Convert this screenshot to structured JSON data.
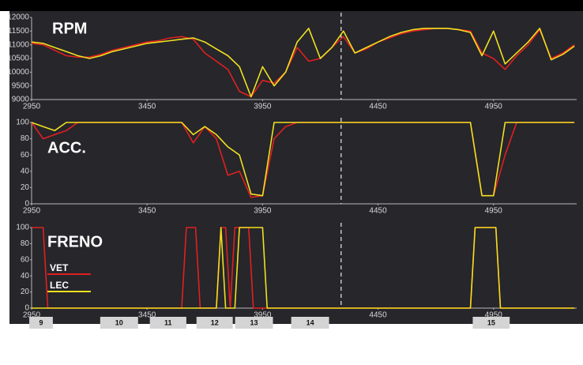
{
  "chart_data": [
    {
      "type": "line",
      "title": "RPM",
      "x": [
        2950,
        3000,
        3050,
        3100,
        3150,
        3200,
        3250,
        3300,
        3350,
        3400,
        3450,
        3500,
        3550,
        3600,
        3650,
        3700,
        3750,
        3800,
        3850,
        3900,
        3950,
        4000,
        4050,
        4100,
        4150,
        4200,
        4250,
        4300,
        4350,
        4400,
        4450,
        4500,
        4550,
        4600,
        4650,
        4700,
        4750,
        4800,
        4850,
        4900,
        4950,
        5000,
        5050,
        5100,
        5150,
        5200,
        5250,
        5300
      ],
      "series": [
        {
          "color": "#e02020",
          "values": [
            11050,
            11000,
            10800,
            10600,
            10550,
            10550,
            10650,
            10800,
            10900,
            11000,
            11100,
            11150,
            11250,
            11300,
            11200,
            10700,
            10400,
            10100,
            9300,
            9100,
            9700,
            9600,
            10000,
            10900,
            10400,
            10500,
            10900,
            11300,
            10700,
            10850,
            11100,
            11250,
            11400,
            11500,
            11550,
            11600,
            11600,
            11550,
            11500,
            10700,
            10500,
            10100,
            10600,
            11000,
            11550,
            10500,
            10700,
            11000
          ]
        },
        {
          "color": "#f0e020",
          "values": [
            11100,
            11050,
            10900,
            10750,
            10600,
            10500,
            10600,
            10750,
            10850,
            10950,
            11050,
            11100,
            11150,
            11200,
            11250,
            11100,
            10850,
            10600,
            10200,
            9100,
            10200,
            9500,
            10000,
            11100,
            11600,
            10500,
            10900,
            11500,
            10700,
            10900,
            11100,
            11300,
            11450,
            11550,
            11600,
            11600,
            11600,
            11550,
            11450,
            10600,
            11500,
            10300,
            10700,
            11100,
            11600,
            10450,
            10650,
            10950
          ]
        }
      ],
      "xlim": [
        2950,
        5310
      ],
      "xticks": [
        2950,
        3450,
        3950,
        4450,
        4950
      ],
      "ylim": [
        9000,
        12000
      ],
      "yticks": [
        9000,
        9500,
        10000,
        10500,
        11000,
        11500,
        12000
      ]
    },
    {
      "type": "line",
      "title": "ACC.",
      "x": [
        2950,
        3000,
        3050,
        3100,
        3150,
        3200,
        3250,
        3300,
        3350,
        3400,
        3450,
        3500,
        3550,
        3600,
        3650,
        3700,
        3750,
        3800,
        3850,
        3900,
        3950,
        4000,
        4050,
        4100,
        4150,
        4200,
        4250,
        4300,
        4350,
        4400,
        4450,
        4500,
        4550,
        4600,
        4650,
        4700,
        4750,
        4800,
        4850,
        4900,
        4950,
        5000,
        5050,
        5100,
        5150,
        5200,
        5250,
        5300
      ],
      "series": [
        {
          "color": "#e02020",
          "values": [
            100,
            80,
            85,
            90,
            100,
            100,
            100,
            100,
            100,
            100,
            100,
            100,
            100,
            100,
            75,
            95,
            80,
            35,
            40,
            8,
            10,
            80,
            95,
            100,
            100,
            100,
            100,
            100,
            100,
            100,
            100,
            100,
            100,
            100,
            100,
            100,
            100,
            100,
            100,
            10,
            10,
            60,
            100,
            100,
            100,
            100,
            100,
            100
          ]
        },
        {
          "color": "#f0e020",
          "values": [
            100,
            95,
            90,
            100,
            100,
            100,
            100,
            100,
            100,
            100,
            100,
            100,
            100,
            100,
            85,
            95,
            85,
            70,
            60,
            12,
            10,
            100,
            100,
            100,
            100,
            100,
            100,
            100,
            100,
            100,
            100,
            100,
            100,
            100,
            100,
            100,
            100,
            100,
            100,
            10,
            10,
            100,
            100,
            100,
            100,
            100,
            100,
            100
          ]
        }
      ],
      "xlim": [
        2950,
        5310
      ],
      "xticks": [
        2950,
        3450,
        3950,
        4450,
        4950
      ],
      "ylim": [
        0,
        100
      ],
      "yticks": [
        0,
        20,
        40,
        60,
        80,
        100
      ]
    },
    {
      "type": "line",
      "title": "FRENO",
      "x": [
        2950,
        2980,
        3000,
        3020,
        3600,
        3620,
        3660,
        3680,
        3750,
        3770,
        3790,
        3810,
        3830,
        3850,
        3890,
        3910,
        3950,
        3970,
        4850,
        4870,
        4960,
        4980,
        5300
      ],
      "series": [
        {
          "name": "VET",
          "color": "#e02020",
          "values": [
            100,
            100,
            100,
            0,
            0,
            100,
            100,
            0,
            0,
            100,
            100,
            0,
            100,
            100,
            100,
            0,
            0,
            0,
            0,
            100,
            100,
            0,
            0
          ]
        },
        {
          "name": "LEC",
          "color": "#f0e020",
          "values": [
            0,
            0,
            0,
            0,
            0,
            0,
            0,
            0,
            0,
            100,
            0,
            0,
            0,
            100,
            100,
            100,
            100,
            0,
            0,
            100,
            100,
            0,
            0
          ]
        }
      ],
      "xlim": [
        2950,
        5310
      ],
      "xticks": [
        2950,
        3450,
        3950,
        4450,
        4950
      ],
      "ylim": [
        0,
        100
      ],
      "yticks": [
        0,
        20,
        40,
        60,
        80,
        100
      ]
    }
  ],
  "cursor": 4290,
  "sectors": [
    {
      "label": "9",
      "start": 2940,
      "end": 3042
    },
    {
      "label": "10",
      "start": 3247,
      "end": 3411
    },
    {
      "label": "11",
      "start": 3462,
      "end": 3620
    },
    {
      "label": "12",
      "start": 3664,
      "end": 3821
    },
    {
      "label": "13",
      "start": 3831,
      "end": 3995
    },
    {
      "label": "14",
      "start": 4074,
      "end": 4238
    },
    {
      "label": "15",
      "start": 4860,
      "end": 5020
    }
  ]
}
